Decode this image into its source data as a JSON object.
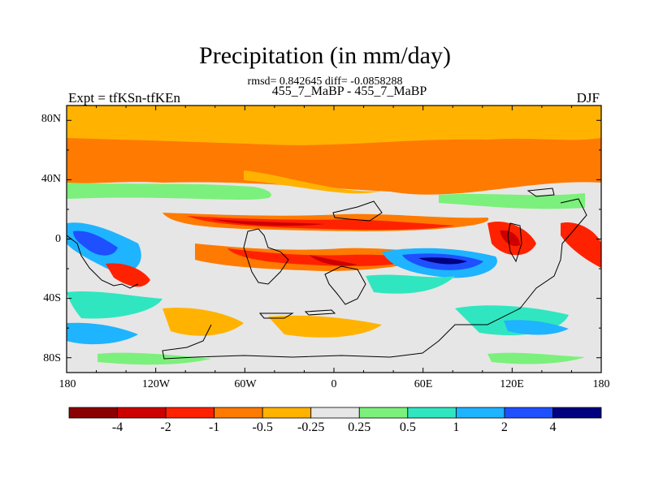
{
  "title": "Precipitation (in mm/day)",
  "stats": "rmsd= 0.842645 diff= -0.0858288",
  "subtitle": "455_7_MaBP - 455_7_MaBP",
  "experiment": "Expt = tfKSn-tfKEn",
  "season": "DJF",
  "y_ticks": [
    "80N",
    "40N",
    "0",
    "40S",
    "80S"
  ],
  "x_ticks": [
    "180",
    "120W",
    "60W",
    "0",
    "60E",
    "120E",
    "180"
  ],
  "colorbar": {
    "labels": [
      "-4",
      "-2",
      "-1",
      "-0.5",
      "-0.25",
      "0.25",
      "0.5",
      "1",
      "2",
      "4"
    ],
    "colors": [
      "#8b0000",
      "#cc0000",
      "#ff2200",
      "#ff7a00",
      "#ffb300",
      "#e6e6e6",
      "#7cf07c",
      "#30e6c0",
      "#1eb4ff",
      "#1e50ff",
      "#000080"
    ]
  },
  "chart_data": {
    "type": "heatmap",
    "variable": "Precipitation difference",
    "units": "mm/day",
    "xlim": [
      -180,
      180
    ],
    "ylim": [
      -90,
      90
    ],
    "levels": [
      -4,
      -2,
      -1,
      -0.5,
      -0.25,
      0.25,
      0.5,
      1,
      2,
      4
    ],
    "grid": false
  }
}
